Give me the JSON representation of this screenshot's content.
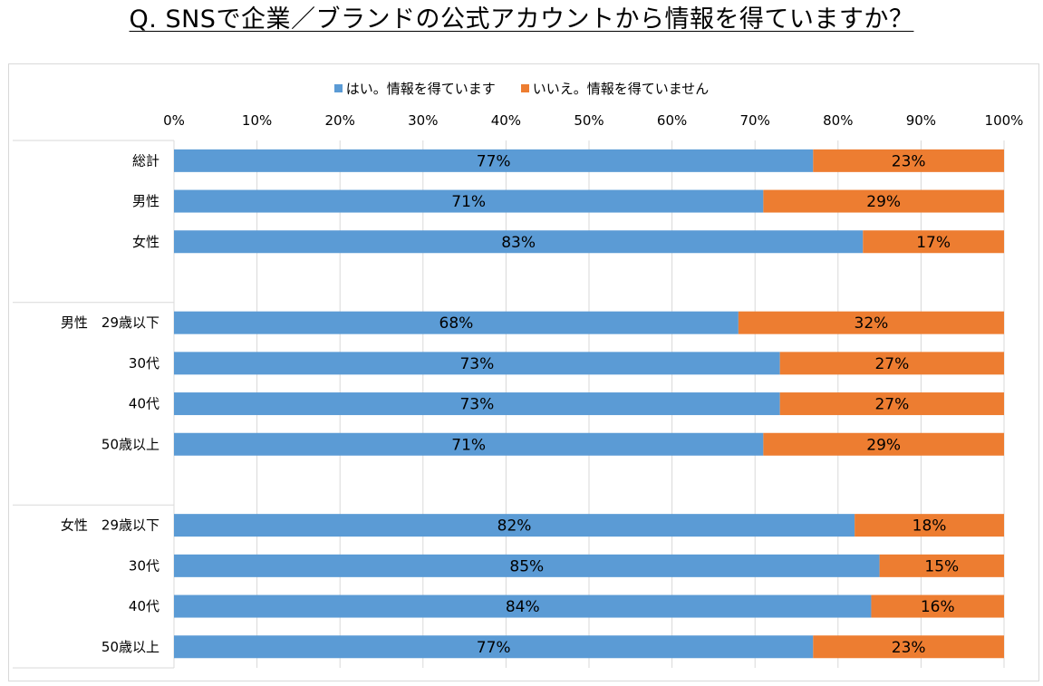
{
  "title": "Q. SNSで企業／ブランドの公式アカウントから情報を得ていますか？",
  "chart_data": {
    "type": "bar",
    "orientation": "horizontal",
    "stacked": "percent",
    "title": "Q. SNSで企業／ブランドの公式アカウントから情報を得ていますか？",
    "x_axis": {
      "range": [
        0,
        100
      ],
      "ticks": [
        "0%",
        "10%",
        "20%",
        "30%",
        "40%",
        "50%",
        "60%",
        "70%",
        "80%",
        "90%",
        "100%"
      ],
      "position": "top"
    },
    "grid": true,
    "legend_position": "top",
    "groups": [
      {
        "items": [
          {
            "label": "総計",
            "yes": 77,
            "no": 23
          },
          {
            "label": "男性",
            "yes": 71,
            "no": 29
          },
          {
            "label": "女性",
            "yes": 83,
            "no": 17
          }
        ]
      },
      {
        "items": [
          {
            "label": "男性　29歳以下",
            "yes": 68,
            "no": 32
          },
          {
            "label": "30代",
            "yes": 73,
            "no": 27
          },
          {
            "label": "40代",
            "yes": 73,
            "no": 27
          },
          {
            "label": "50歳以上",
            "yes": 71,
            "no": 29
          }
        ]
      },
      {
        "items": [
          {
            "label": "女性　29歳以下",
            "yes": 82,
            "no": 18
          },
          {
            "label": "30代",
            "yes": 85,
            "no": 15
          },
          {
            "label": "40代",
            "yes": 84,
            "no": 16
          },
          {
            "label": "50歳以上",
            "yes": 77,
            "no": 23
          }
        ]
      }
    ],
    "series": [
      {
        "name": "はい。情報を得ています",
        "key": "yes",
        "color": "#5b9bd5"
      },
      {
        "name": "いいえ。情報を得ていません",
        "key": "no",
        "color": "#ed7d31"
      }
    ]
  }
}
